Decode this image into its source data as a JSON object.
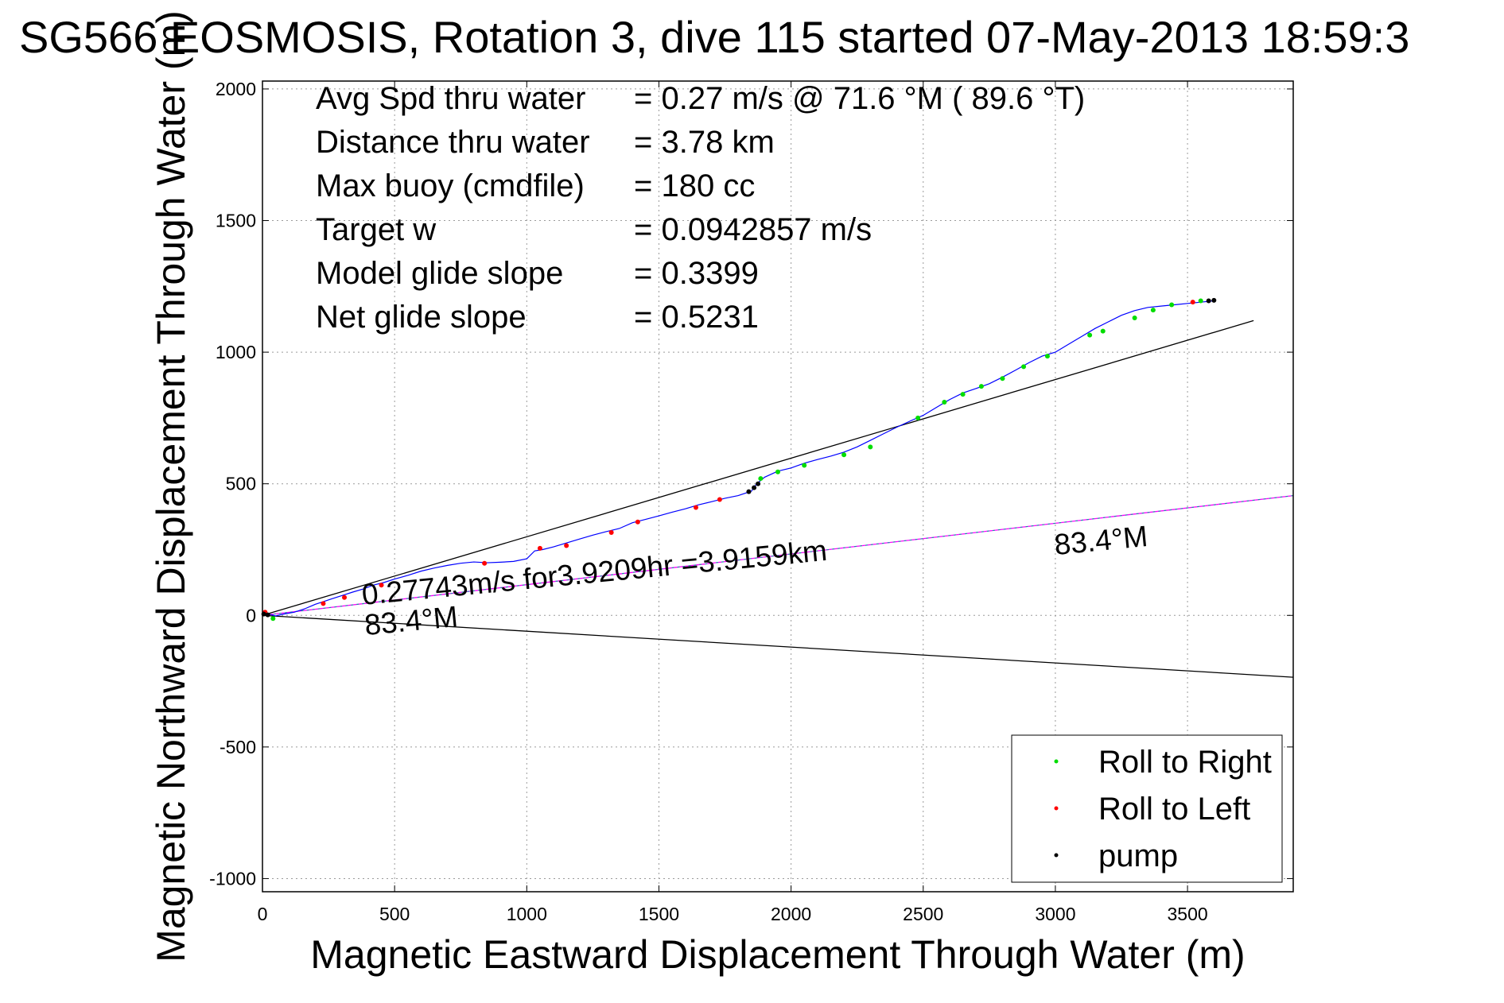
{
  "chart_data": {
    "type": "scatter",
    "title": "SG566 EOSMOSIS, Rotation 3, dive 115 started 07-May-2013 18:59:3",
    "xlabel": "Magnetic Eastward Displacement Through Water (m)",
    "ylabel": "Magnetic Northward Displacement Through Water (m)",
    "xlim": [
      0,
      3900
    ],
    "ylim": [
      -1050,
      2030
    ],
    "xticks": [
      0,
      500,
      1000,
      1500,
      2000,
      2500,
      3000,
      3500
    ],
    "yticks": [
      2000,
      1500,
      1000,
      500,
      0,
      -500,
      -1000
    ],
    "grid": true,
    "legend_position": "bottom-right",
    "info_box": [
      {
        "label": "Avg Spd thru water",
        "value": "=  0.27 m/s @  71.6 °M ( 89.6 °T)"
      },
      {
        "label": "Distance thru water",
        "value": "=  3.78 km"
      },
      {
        "label": "Max buoy (cmdfile)",
        "value": "= 180 cc"
      },
      {
        "label": "Target w",
        "value": "= 0.0942857 m/s"
      },
      {
        "label": "Model glide slope",
        "value": "= 0.3399"
      },
      {
        "label": "Net glide slope",
        "value": "= 0.5231"
      }
    ],
    "annotations": [
      {
        "text": "0.27743m/s for3.9209hr =3.9159km",
        "x": 380,
        "y": 40
      },
      {
        "text": "83.4°M",
        "x": 3000,
        "y": 230
      },
      {
        "text": "83.4°M",
        "x": 390,
        "y": -75
      }
    ],
    "reference_lines": [
      {
        "from": [
          0,
          0
        ],
        "to": [
          3750,
          1120
        ],
        "color": "#000000"
      },
      {
        "from": [
          0,
          0
        ],
        "to": [
          3900,
          455
        ],
        "color": "#ff00ff"
      },
      {
        "from": [
          0,
          0
        ],
        "to": [
          3900,
          455
        ],
        "color": "#00a0a0",
        "dashed": true
      },
      {
        "from": [
          0,
          0
        ],
        "to": [
          3900,
          -235
        ],
        "color": "#000000"
      }
    ],
    "track": {
      "color": "#0000ff",
      "x": [
        0,
        15,
        30,
        50,
        80,
        120,
        160,
        200,
        230,
        260,
        300,
        340,
        380,
        420,
        460,
        500,
        550,
        600,
        650,
        700,
        750,
        800,
        850,
        900,
        950,
        1000,
        1030,
        1060,
        1100,
        1150,
        1200,
        1250,
        1300,
        1350,
        1400,
        1450,
        1500,
        1550,
        1600,
        1650,
        1700,
        1750,
        1800,
        1850,
        1870,
        1900,
        1950,
        2000,
        2050,
        2100,
        2150,
        2200,
        2250,
        2300,
        2350,
        2400,
        2450,
        2500,
        2550,
        2600,
        2650,
        2700,
        2750,
        2800,
        2850,
        2900,
        2950,
        3000,
        3050,
        3100,
        3150,
        3200,
        3250,
        3300,
        3350,
        3400,
        3450,
        3500,
        3550,
        3600
      ],
      "y": [
        0,
        8,
        3,
        -2,
        5,
        12,
        25,
        42,
        52,
        62,
        75,
        88,
        100,
        115,
        125,
        138,
        152,
        168,
        180,
        190,
        198,
        203,
        200,
        202,
        205,
        215,
        245,
        250,
        260,
        275,
        290,
        305,
        318,
        330,
        352,
        365,
        378,
        392,
        405,
        420,
        432,
        445,
        455,
        472,
        500,
        525,
        548,
        560,
        578,
        592,
        605,
        620,
        640,
        665,
        690,
        715,
        738,
        760,
        790,
        820,
        845,
        862,
        880,
        905,
        932,
        960,
        985,
        1000,
        1030,
        1060,
        1090,
        1115,
        1140,
        1158,
        1170,
        1175,
        1180,
        1185,
        1190,
        1195
      ]
    },
    "series": [
      {
        "name": "Roll to Right",
        "color": "#00dd00",
        "points": [
          [
            40,
            -12
          ],
          [
            1885,
            520
          ],
          [
            1950,
            545
          ],
          [
            2050,
            570
          ],
          [
            2200,
            610
          ],
          [
            2300,
            640
          ],
          [
            2480,
            750
          ],
          [
            2580,
            810
          ],
          [
            2650,
            840
          ],
          [
            2720,
            870
          ],
          [
            2800,
            900
          ],
          [
            2880,
            945
          ],
          [
            2970,
            985
          ],
          [
            3130,
            1065
          ],
          [
            3180,
            1080
          ],
          [
            3300,
            1130
          ],
          [
            3370,
            1160
          ],
          [
            3440,
            1180
          ],
          [
            3550,
            1195
          ]
        ]
      },
      {
        "name": "Roll to Left",
        "color": "#ff0000",
        "points": [
          [
            10,
            12
          ],
          [
            230,
            45
          ],
          [
            310,
            68
          ],
          [
            450,
            115
          ],
          [
            840,
            198
          ],
          [
            1050,
            255
          ],
          [
            1150,
            265
          ],
          [
            1320,
            315
          ],
          [
            1420,
            355
          ],
          [
            1640,
            410
          ],
          [
            1730,
            440
          ],
          [
            3520,
            1190
          ]
        ]
      },
      {
        "name": "pump",
        "color": "#000000",
        "points": [
          [
            5,
            5
          ],
          [
            20,
            2
          ],
          [
            1840,
            470
          ],
          [
            1860,
            485
          ],
          [
            1875,
            500
          ],
          [
            3580,
            1195
          ],
          [
            3600,
            1197
          ]
        ]
      }
    ]
  }
}
